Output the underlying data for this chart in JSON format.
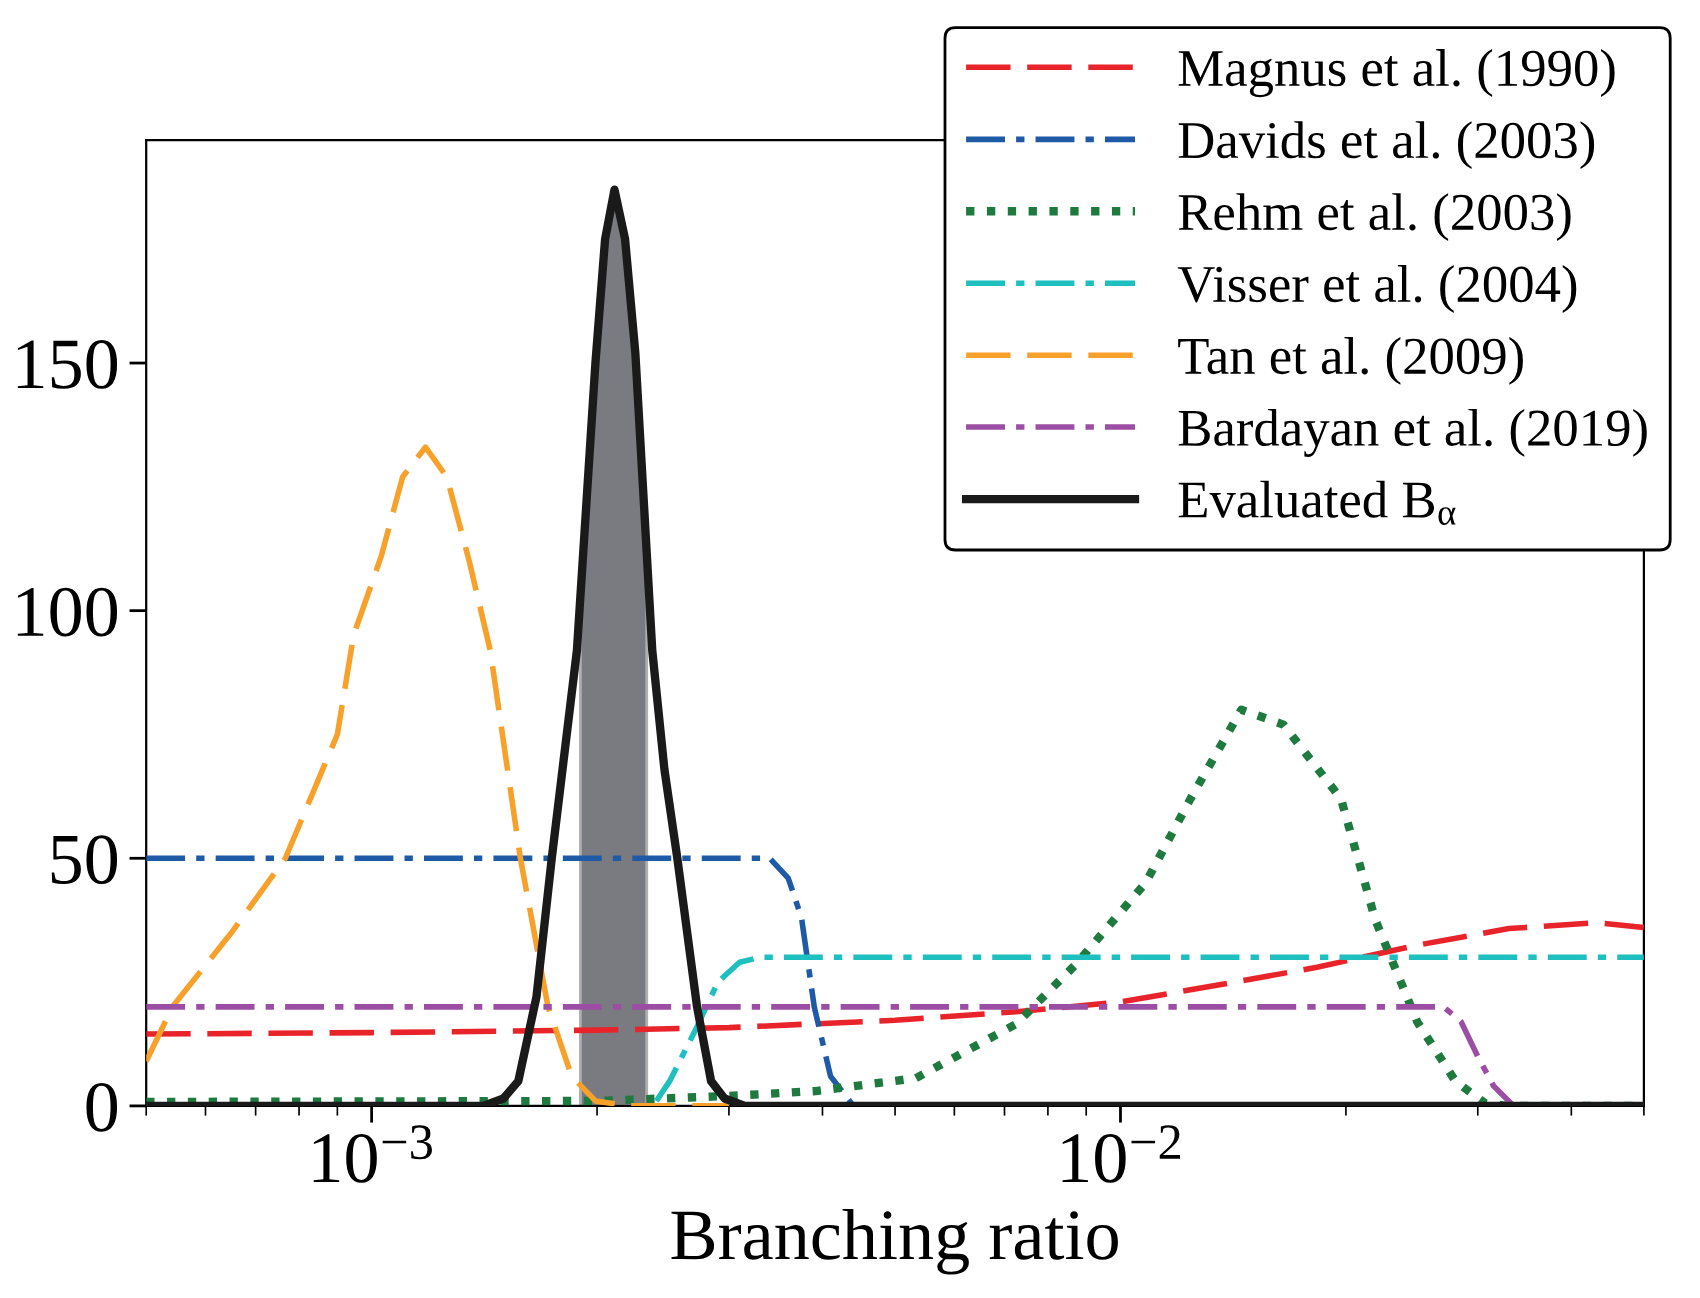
{
  "chart_data": {
    "type": "line",
    "xlabel": "Branching ratio",
    "log": "x",
    "xlim": [
      0.0005,
      0.05
    ],
    "ylim": [
      0,
      195
    ],
    "xticks": [
      {
        "value": 0.001,
        "label": "10$^{−3}$"
      },
      {
        "value": 0.01,
        "label": "10$^{−2}$"
      }
    ],
    "yticks": [
      0,
      50,
      100,
      150
    ],
    "grid": false,
    "legend": "top right",
    "marker": "none",
    "series": [
      {
        "type": "area",
        "color": "#7a7b80",
        "x": [
          0.0019,
          0.00199,
          0.00205,
          0.00211,
          0.00218,
          0.00225,
          0.00233
        ],
        "values": [
          97,
          150,
          175,
          185,
          175,
          152,
          112
        ]
      },
      {
        "name": "Magnus et al. (1990)",
        "color": "#e8242a",
        "line_style": "dashed",
        "x": [
          0.0005,
          0.001,
          0.002,
          0.003,
          0.005,
          0.00725,
          0.01,
          0.0135,
          0.0183,
          0.025,
          0.033,
          0.0433,
          0.05
        ],
        "values": [
          14.5,
          14.8,
          15.3,
          15.8,
          17.3,
          19,
          21,
          24.4,
          28,
          32.5,
          35.8,
          37,
          36
        ]
      },
      {
        "name": "Davids et al. (2003)",
        "color": "#1f5aa6",
        "line_style": "dashdot",
        "x": [
          0.0005,
          0.0034,
          0.0036,
          0.00375,
          0.0039,
          0.0041,
          0.0044,
          0.05
        ],
        "values": [
          50,
          50,
          46,
          38,
          20,
          6,
          0,
          0
        ]
      },
      {
        "name": "Rehm et al. (2003)",
        "color": "#1e7a3e",
        "line_style": "dotted",
        "x": [
          0.0005,
          0.002,
          0.003,
          0.00392,
          0.00533,
          0.00725,
          0.00872,
          0.0108,
          0.0124,
          0.0145,
          0.0165,
          0.0197,
          0.0219,
          0.0249,
          0.028,
          0.0307,
          0.033,
          0.05
        ],
        "values": [
          0.8,
          1,
          2,
          3,
          5.6,
          16.5,
          28.6,
          45,
          62,
          80,
          77,
          62,
          37.5,
          17,
          5,
          0.5,
          0,
          0
        ]
      },
      {
        "name": "Visser et al. (2004)",
        "color": "#1dbfbf",
        "line_style": "dashdot",
        "x": [
          0.0024,
          0.0025,
          0.0027,
          0.0029,
          0.0031,
          0.0033,
          0.05
        ],
        "values": [
          1,
          5,
          15,
          25,
          29,
          30,
          30
        ]
      },
      {
        "name": "Tan et al. (2009)",
        "color": "#f7a02a",
        "line_style": "dashed",
        "x": [
          0.0005,
          0.000542,
          0.00065,
          0.000767,
          0.0009,
          0.000946,
          0.00103,
          0.0011,
          0.00118,
          0.00126,
          0.00135,
          0.00144,
          0.00158,
          0.00172,
          0.00185,
          0.00199,
          0.0022,
          0.003
        ],
        "values": [
          9,
          20,
          35,
          50,
          75,
          95,
          111,
          127,
          133,
          127,
          110,
          92,
          50,
          20,
          6,
          1,
          0,
          0
        ]
      },
      {
        "name": "Bardayan et al. (2019)",
        "color": "#9b4ea3",
        "line_style": "dashdot",
        "x": [
          0.0005,
          0.027,
          0.0285,
          0.03,
          0.0315,
          0.0335,
          0.05
        ],
        "values": [
          20,
          20,
          17,
          10,
          4,
          0,
          0
        ]
      },
      {
        "name": "Evaluated B$_{α}$",
        "color": "#1a1a1a",
        "line_style": "solid",
        "x": [
          0.0005,
          0.00141,
          0.0015,
          0.00157,
          0.00166,
          0.00174,
          0.00188,
          0.00199,
          0.00205,
          0.00211,
          0.00218,
          0.00225,
          0.00237,
          0.00246,
          0.00256,
          0.00272,
          0.00284,
          0.00296,
          0.00315,
          0.05
        ],
        "values": [
          0,
          0,
          1.5,
          5,
          22,
          50,
          92,
          150,
          175,
          185,
          175,
          152,
          92,
          68,
          50,
          20,
          5,
          1.5,
          0,
          0
        ]
      }
    ]
  }
}
